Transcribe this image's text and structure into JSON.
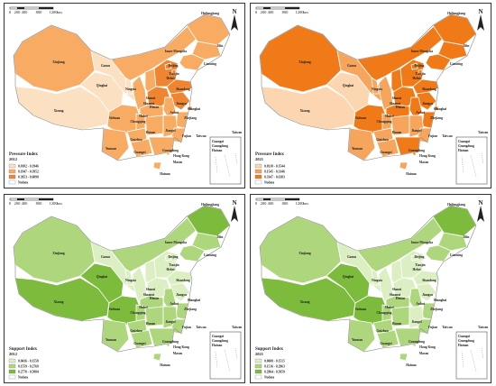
{
  "scale_ticks": [
    "0",
    "200",
    "400",
    "800",
    "1200"
  ],
  "scale_unit": "km",
  "north_label": "N",
  "inset_labels": [
    "Guangxi",
    "Guangdong",
    "Hainan"
  ],
  "taiwan_label": "Taiwan",
  "nodata_label": "Nodata",
  "provinces": {
    "Heilongjiang": "Heilongjiang",
    "Jilin": "Jilin",
    "Liaoning": "Liaoning",
    "InnerMongolia": "Inner Mongolia",
    "Xinjiang": "Xinjiang",
    "Gansu": "Gansu",
    "Qinghai": "Qinghai",
    "Xizang": "Xizang",
    "Ningxia": "Ningxia",
    "Beijing": "Beijing",
    "Tianjin": "Tianjin",
    "Hebei": "Hebei",
    "Shanxi": "Shanxi",
    "Shaanxi": "Shaanxi",
    "Shandong": "Shandong",
    "Henan": "Henan",
    "Jiangsu": "Jiangsu",
    "Anhui": "Anhui",
    "Shanghai": "Shanghai",
    "Hubei": "Hubei",
    "Sichuan": "Sichuan",
    "Chongqing": "Chongqing",
    "Zhejiang": "Zhejiang",
    "Hunan": "Hunan",
    "Jiangxi": "Jiangxi",
    "Guizhou": "Guizhou",
    "Fujian": "Fujian",
    "Yunnan": "Yunnan",
    "Guangxi": "Guangxi",
    "Guangdong": "Guangdong",
    "HongKong": "Hong Kong",
    "Macau": "Macau",
    "Hainan": "Hainan",
    "Taiwan": "Taiwan"
  },
  "colors": {
    "pressure": [
      "#fbe1c2",
      "#f8ab62",
      "#ef8531"
    ],
    "pressure2021": [
      "#fbd6b0",
      "#f6a55d",
      "#f07a18"
    ],
    "support": [
      "#dcefc2",
      "#aed67c",
      "#7cbb3c"
    ],
    "nodata": "#ffffff"
  },
  "maps": [
    {
      "title": "Pressure Index",
      "year": "2012",
      "legend": [
        {
          "range": "0.0182 - 0.1946",
          "class": 0
        },
        {
          "range": "0.1947 - 0.3952",
          "class": 1
        },
        {
          "range": "0.3953 - 0.6090",
          "class": 2
        }
      ],
      "classes": {
        "Xinjiang": 1,
        "Xizang": 0,
        "Qinghai": 0,
        "Gansu": 0,
        "InnerMongolia": 1,
        "Heilongjiang": 1,
        "Jilin": 1,
        "Liaoning": 1,
        "Ningxia": 0,
        "Shaanxi": 1,
        "Shanxi": 1,
        "Hebei": 2,
        "Shandong": 2,
        "Henan": 2,
        "Sichuan": 1,
        "Chongqing": 1,
        "Hubei": 1,
        "Hunan": 1,
        "Jiangxi": 1,
        "Anhui": 1,
        "Jiangsu": 2,
        "Zhejiang": 1,
        "Fujian": 1,
        "Guangdong": 1,
        "Guangxi": 1,
        "Guizhou": 1,
        "Yunnan": 1,
        "Hainan": 1,
        "Taiwan": -1
      }
    },
    {
      "title": "Pressure Index",
      "year": "2021",
      "legend": [
        {
          "range": "0.0318 - 0.1544",
          "class": 0
        },
        {
          "range": "0.1545 - 0.3346",
          "class": 1
        },
        {
          "range": "0.3347 - 0.6183",
          "class": 2
        }
      ],
      "classes": {
        "Xinjiang": 2,
        "Xizang": 0,
        "Qinghai": 0,
        "Gansu": 1,
        "InnerMongolia": 2,
        "Heilongjiang": 2,
        "Jilin": 2,
        "Liaoning": 2,
        "Ningxia": 1,
        "Shaanxi": 1,
        "Shanxi": 2,
        "Hebei": 2,
        "Shandong": 2,
        "Henan": 2,
        "Sichuan": 2,
        "Chongqing": 1,
        "Hubei": 2,
        "Hunan": 1,
        "Jiangxi": 1,
        "Anhui": 2,
        "Jiangsu": 2,
        "Zhejiang": 2,
        "Fujian": 1,
        "Guangdong": 2,
        "Guangxi": 1,
        "Guizhou": 1,
        "Yunnan": 1,
        "Hainan": 1,
        "Taiwan": -1
      }
    },
    {
      "title": "Support Index",
      "year": "2012",
      "legend": [
        {
          "range": "0.0436 - 0.1558",
          "class": 0
        },
        {
          "range": "0.1559 - 0.2769",
          "class": 1
        },
        {
          "range": "0.2770 - 0.5084",
          "class": 2
        }
      ],
      "classes": {
        "Xinjiang": 1,
        "Xizang": 2,
        "Qinghai": 2,
        "Gansu": 0,
        "InnerMongolia": 1,
        "Heilongjiang": 2,
        "Jilin": 1,
        "Liaoning": 1,
        "Ningxia": 0,
        "Shaanxi": 0,
        "Shanxi": 0,
        "Hebei": 0,
        "Shandong": 0,
        "Henan": 0,
        "Sichuan": 2,
        "Chongqing": 1,
        "Hubei": 1,
        "Hunan": 1,
        "Jiangxi": 1,
        "Anhui": 1,
        "Jiangsu": 0,
        "Zhejiang": 1,
        "Fujian": 1,
        "Guangdong": 1,
        "Guangxi": 1,
        "Guizhou": 1,
        "Yunnan": 1,
        "Hainan": 1,
        "Taiwan": -1
      }
    },
    {
      "title": "Support Index",
      "year": "2021",
      "legend": [
        {
          "range": "0.0600 - 0.1515",
          "class": 0
        },
        {
          "range": "0.1516 - 0.2963",
          "class": 1
        },
        {
          "range": "0.2964 - 0.5059",
          "class": 2
        }
      ],
      "classes": {
        "Xinjiang": 1,
        "Xizang": 2,
        "Qinghai": 2,
        "Gansu": 0,
        "InnerMongolia": 1,
        "Heilongjiang": 2,
        "Jilin": 1,
        "Liaoning": 1,
        "Ningxia": 0,
        "Shaanxi": 0,
        "Shanxi": 0,
        "Hebei": 0,
        "Shandong": 0,
        "Henan": 0,
        "Sichuan": 2,
        "Chongqing": 1,
        "Hubei": 1,
        "Hunan": 1,
        "Jiangxi": 0,
        "Anhui": 1,
        "Jiangsu": 0,
        "Zhejiang": 1,
        "Fujian": 1,
        "Guangdong": 1,
        "Guangxi": 1,
        "Guizhou": 1,
        "Yunnan": 1,
        "Hainan": 1,
        "Taiwan": -1
      }
    }
  ]
}
